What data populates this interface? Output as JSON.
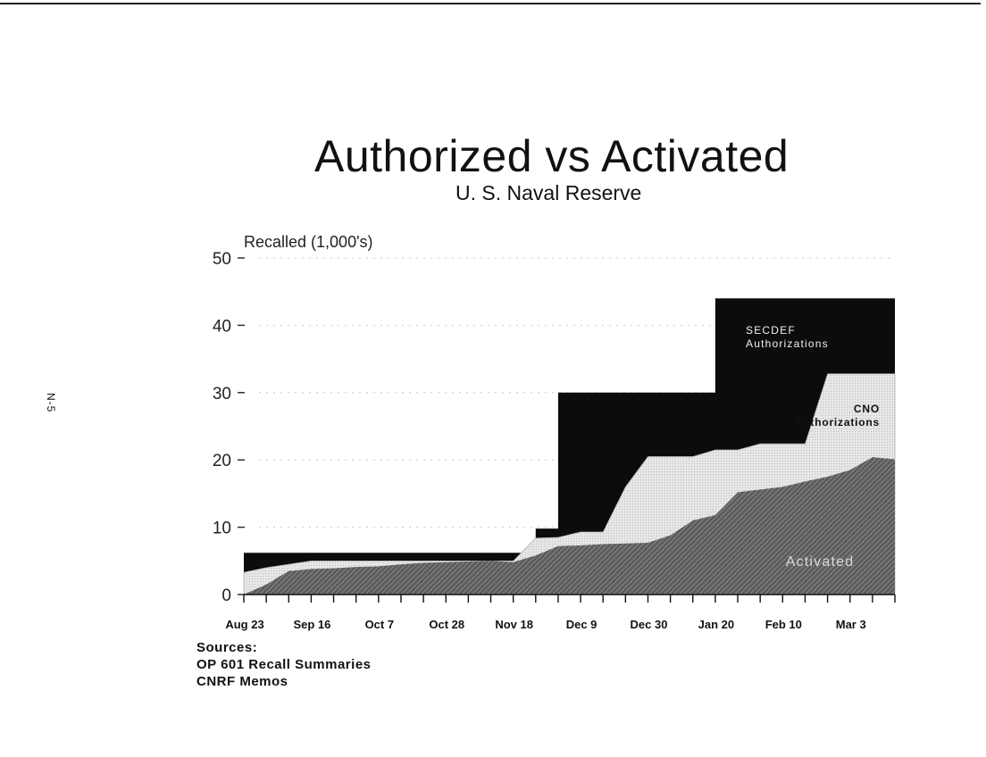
{
  "side_tag": "N-5",
  "sources": {
    "heading": "Sources:",
    "items": [
      "OP 601 Recall Summaries",
      "CNRF Memos"
    ]
  },
  "colors": {
    "secdef": "#0c0c0c",
    "cno": "#e0e0e0",
    "activated": "#6a6a6a"
  },
  "chart_data": {
    "type": "area",
    "title": "Authorized vs Activated",
    "subtitle": "U. S. Naval Reserve",
    "ylabel": "Recalled (1,000's)",
    "ylim": [
      0,
      50
    ],
    "yticks": [
      0,
      10,
      20,
      30,
      40,
      50
    ],
    "x_tick_labels": [
      "Aug 23",
      "Sep 16",
      "Oct 7",
      "Oct 28",
      "Nov 18",
      "Dec 9",
      "Dec 30",
      "Jan 20",
      "Feb 10",
      "Mar 3"
    ],
    "x_index_range": [
      0,
      29
    ],
    "series": [
      {
        "name": "SECDEF Authorizations",
        "x": [
          0,
          11,
          11,
          13,
          13,
          14,
          14,
          20,
          20,
          21,
          21,
          29
        ],
        "y": [
          6.2,
          6.2,
          6.2,
          6.2,
          9.8,
          9.8,
          30,
          30,
          30,
          30,
          44,
          44
        ]
      },
      {
        "name": "CNO Authorizations",
        "x": [
          0,
          1,
          2,
          3,
          10,
          11,
          12,
          13,
          14,
          15,
          16,
          17,
          18,
          19,
          20,
          21,
          22,
          23,
          24,
          25,
          26,
          27,
          28,
          29
        ],
        "y": [
          3.3,
          4.0,
          4.5,
          5.0,
          5.0,
          5.0,
          5.0,
          8.4,
          8.5,
          9.3,
          9.3,
          16.0,
          20.5,
          20.5,
          20.5,
          21.5,
          21.5,
          22.4,
          22.4,
          22.4,
          32.8,
          32.8,
          32.8,
          32.8
        ]
      },
      {
        "name": "Activated",
        "x": [
          0,
          1,
          2,
          3,
          4,
          5,
          6,
          7,
          8,
          9,
          10,
          11,
          12,
          13,
          14,
          15,
          16,
          17,
          18,
          19,
          20,
          21,
          22,
          23,
          24,
          25,
          26,
          27,
          28,
          29
        ],
        "y": [
          0,
          1.5,
          3.5,
          3.8,
          3.9,
          4.1,
          4.2,
          4.5,
          4.7,
          4.8,
          4.9,
          5.0,
          4.8,
          5.8,
          7.2,
          7.3,
          7.5,
          7.6,
          7.7,
          8.8,
          11.0,
          11.8,
          15.2,
          15.6,
          16.0,
          16.8,
          17.5,
          18.5,
          20.4,
          20.1
        ]
      }
    ],
    "legend": "inline labels"
  }
}
